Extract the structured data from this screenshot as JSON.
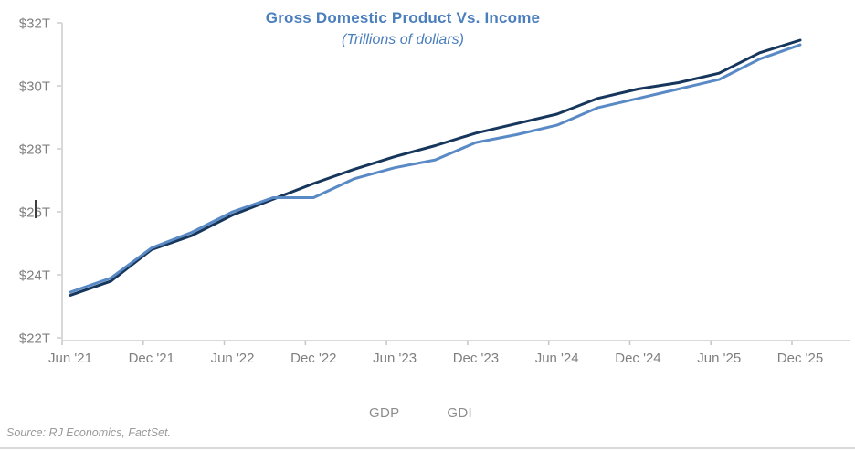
{
  "title": {
    "text": "Gross Domestic Product Vs. Income",
    "subtitle": "(Trillions of dollars)",
    "color": "#4a7ebd"
  },
  "source": "Source: RJ Economics, FactSet.",
  "legend": {
    "position": "bottom",
    "items": [
      {
        "label": "GDP",
        "color": "#16365c"
      },
      {
        "label": "GDI",
        "color": "#5a8ac6"
      }
    ]
  },
  "colors": {
    "title_blue": "#4a7ebd",
    "gdp_line": "#16365c",
    "gdi_line": "#5a8ac6",
    "axis_line": "#d9d9d9",
    "tick_mark": "#c6c6c6",
    "tick_label": "#7f7f7f",
    "legend_text": "#8c8c8c",
    "source_text": "#9a9a9a"
  },
  "chart_data": {
    "type": "line",
    "title": "Gross Domestic Product Vs. Income",
    "subtitle": "(Trillions of dollars)",
    "x": [
      "Jun '21",
      "Sep '21",
      "Dec '21",
      "Mar '22",
      "Jun '22",
      "Sep '22",
      "Dec '22",
      "Mar '23",
      "Jun '23",
      "Sep '23",
      "Dec '23",
      "Mar '24",
      "Jun '24",
      "Sep '24",
      "Dec '24",
      "Mar '25",
      "Jun '25",
      "Sep '25",
      "Dec '25"
    ],
    "x_tick_labels": [
      "Jun '21",
      "Dec '21",
      "Jun '22",
      "Dec '22",
      "Jun '23",
      "Dec '23",
      "Jun '24",
      "Dec '24",
      "Jun '25",
      "Dec '25"
    ],
    "series": [
      {
        "name": "GDP",
        "color": "#16365c",
        "values": [
          23.35,
          23.8,
          24.8,
          25.25,
          25.9,
          26.4,
          26.9,
          27.35,
          27.75,
          28.1,
          28.5,
          28.8,
          29.1,
          29.6,
          29.9,
          30.1,
          30.4,
          31.05,
          31.45
        ]
      },
      {
        "name": "GDI",
        "color": "#5a8ac6",
        "values": [
          23.45,
          23.9,
          24.85,
          25.35,
          26.0,
          26.45,
          26.45,
          27.05,
          27.4,
          27.65,
          28.2,
          28.45,
          28.75,
          29.3,
          29.6,
          29.9,
          30.2,
          30.85,
          31.3
        ]
      }
    ],
    "ylabel": "",
    "xlabel": "",
    "ylim": [
      22,
      32
    ],
    "yticks": [
      {
        "label": "$32T",
        "value": 32
      },
      {
        "label": "$30T",
        "value": 30
      },
      {
        "label": "$28T",
        "value": 28
      },
      {
        "label": "$26T",
        "value": 26
      },
      {
        "label": "$24T",
        "value": 24
      },
      {
        "label": "$22T",
        "value": 22
      }
    ],
    "grid": false,
    "legend_position": "bottom"
  }
}
